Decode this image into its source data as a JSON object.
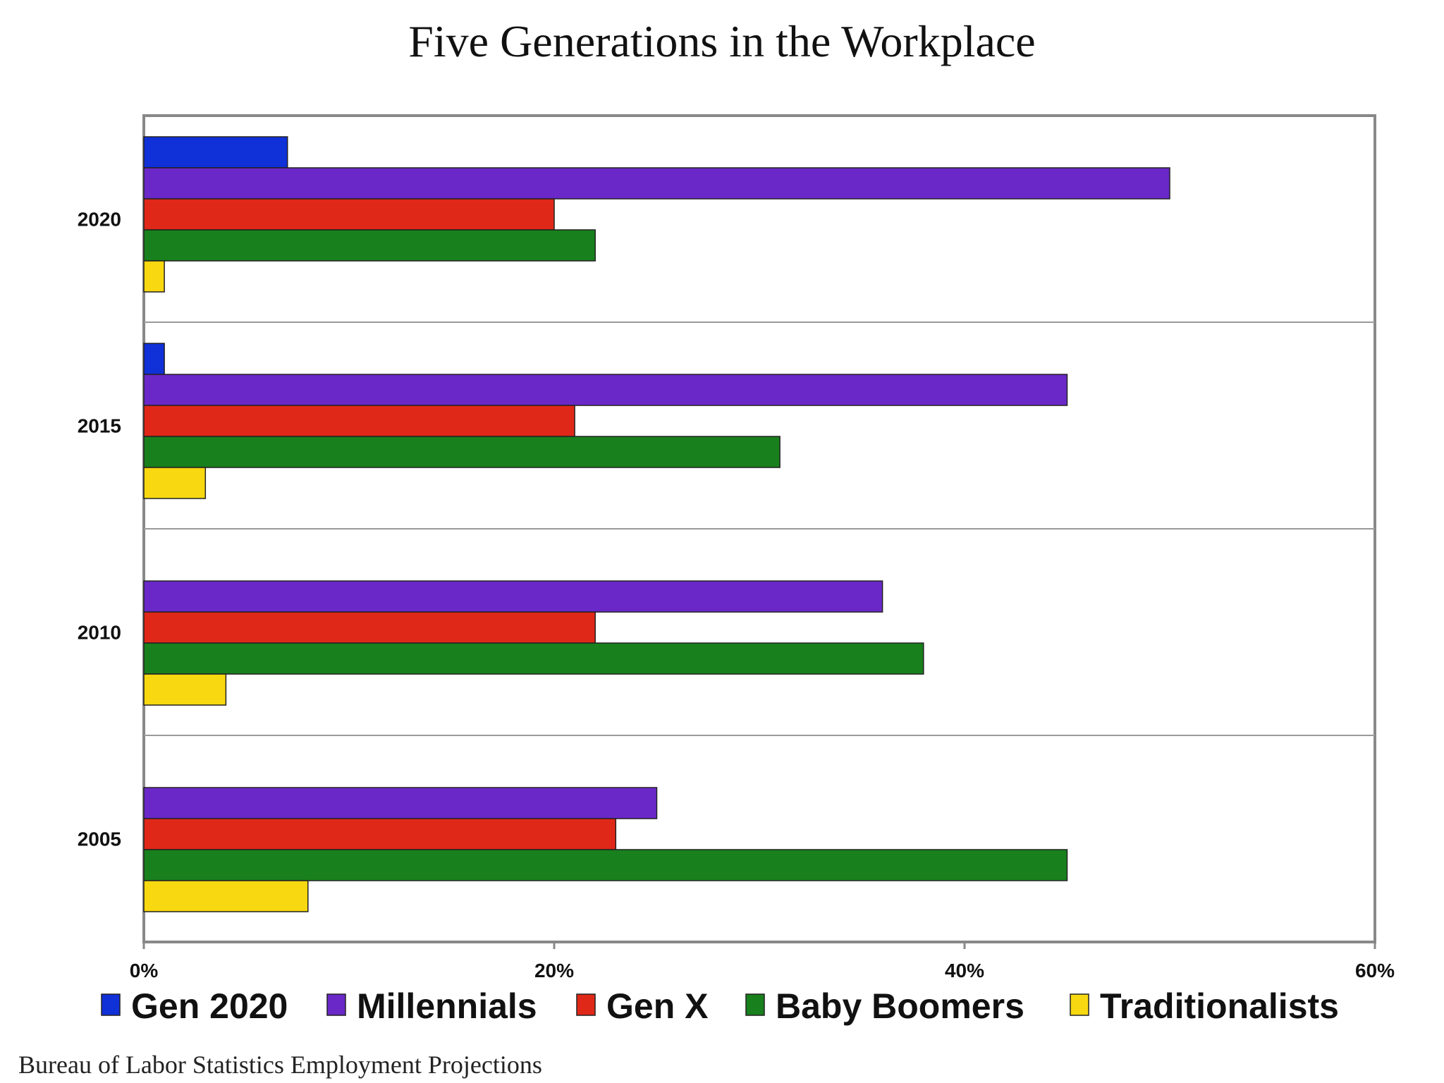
{
  "chart_data": {
    "type": "bar",
    "orientation": "horizontal",
    "title": "Five Generations in the Workplace",
    "source": "Bureau of Labor Statistics Employment Projections",
    "categories": [
      "2020",
      "2015",
      "2010",
      "2005"
    ],
    "xlim": [
      0,
      60
    ],
    "x_ticks": [
      0,
      20,
      40,
      60
    ],
    "x_tick_labels": [
      "0%",
      "20%",
      "40%",
      "60%"
    ],
    "grid": "horizontal separators between categories",
    "legend_position": "bottom",
    "series": [
      {
        "name": "Gen 2020",
        "color": "#1030d8",
        "values": [
          7,
          1,
          0,
          0
        ]
      },
      {
        "name": "Millennials",
        "color": "#6a28c8",
        "values": [
          50,
          45,
          36,
          25
        ]
      },
      {
        "name": "Gen X",
        "color": "#e02818",
        "values": [
          20,
          21,
          22,
          23
        ]
      },
      {
        "name": "Baby Boomers",
        "color": "#18801c",
        "values": [
          22,
          31,
          38,
          45
        ]
      },
      {
        "name": "Traditionalists",
        "color": "#f8d810",
        "values": [
          1,
          3,
          4,
          8
        ]
      }
    ]
  }
}
